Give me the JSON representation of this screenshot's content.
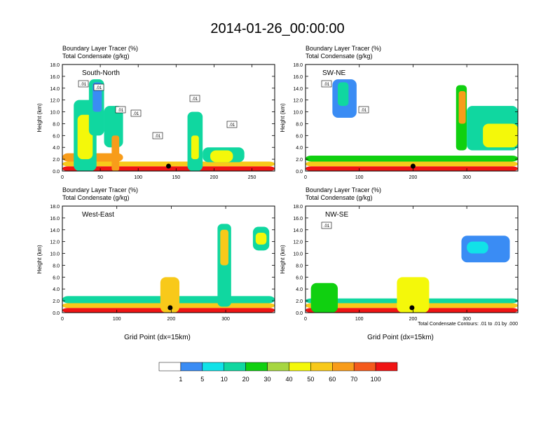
{
  "title": "2014-01-26_00:00:00",
  "colors": {
    "bins": [
      "#ffffff",
      "#3a8cf4",
      "#11e2e8",
      "#10d7a0",
      "#10d010",
      "#a6d640",
      "#f4f80a",
      "#f8c91a",
      "#f89c1a",
      "#f45a1c",
      "#f01414"
    ],
    "contour": "#000000",
    "marker": "#000000"
  },
  "colorbar": {
    "labels": [
      "1",
      "5",
      "10",
      "20",
      "30",
      "40",
      "50",
      "60",
      "70",
      "100"
    ]
  },
  "footnote": "Total Condensate Contours: .01 to .01 by .000",
  "chart_data": [
    {
      "type": "heatmap",
      "name_label": "South-North",
      "subtitle": [
        "Boundary Layer Tracer    (%)",
        "Total Condensate    (g/kg)"
      ],
      "ylabel": "Height (km)",
      "xlabel": "",
      "xlim": [
        0,
        280
      ],
      "ylim": [
        0,
        18
      ],
      "xticks": [
        "0",
        "50",
        "100",
        "150",
        "200",
        "250"
      ],
      "xtick_values": [
        0,
        50,
        100,
        150,
        200,
        250
      ],
      "yticks": [
        "0.0",
        "2.0",
        "4.0",
        "6.0",
        "8.0",
        "10.0",
        "12.0",
        "14.0",
        "16.0",
        "18.0"
      ],
      "marker_x": 140,
      "contour_labels": [
        ".01",
        ".01",
        ".01",
        ".01",
        ".01",
        ".01",
        ".01"
      ],
      "features": [
        {
          "x": [
            0,
            280
          ],
          "y": [
            0,
            0.8
          ],
          "level": 10
        },
        {
          "x": [
            0,
            280
          ],
          "y": [
            0.8,
            1.6
          ],
          "level": 7
        },
        {
          "x": [
            0,
            80
          ],
          "y": [
            1.6,
            3.0
          ],
          "level": 8
        },
        {
          "x": [
            15,
            45
          ],
          "y": [
            0,
            12.0
          ],
          "level": 3
        },
        {
          "x": [
            20,
            40
          ],
          "y": [
            2,
            9.5
          ],
          "level": 6
        },
        {
          "x": [
            35,
            55
          ],
          "y": [
            6,
            15.5
          ],
          "level": 3
        },
        {
          "x": [
            40,
            52
          ],
          "y": [
            10,
            15
          ],
          "level": 1
        },
        {
          "x": [
            55,
            80
          ],
          "y": [
            4,
            11
          ],
          "level": 3
        },
        {
          "x": [
            65,
            75
          ],
          "y": [
            0,
            6
          ],
          "level": 8
        },
        {
          "x": [
            165,
            185
          ],
          "y": [
            0,
            10
          ],
          "level": 3
        },
        {
          "x": [
            170,
            180
          ],
          "y": [
            2,
            6
          ],
          "level": 6
        },
        {
          "x": [
            185,
            240
          ],
          "y": [
            1.5,
            4.0
          ],
          "level": 3
        },
        {
          "x": [
            195,
            225
          ],
          "y": [
            1.5,
            3.5
          ],
          "level": 6
        }
      ]
    },
    {
      "type": "heatmap",
      "name_label": "SW-NE",
      "subtitle": [
        "Boundary Layer Tracer    (%)",
        "Total Condensate    (g/kg)"
      ],
      "ylabel": "Height (km)",
      "xlabel": "",
      "xlim": [
        0,
        395
      ],
      "ylim": [
        0,
        18
      ],
      "xticks": [
        "0",
        "100",
        "200",
        "300"
      ],
      "xtick_values": [
        0,
        100,
        200,
        300
      ],
      "yticks": [
        "0.0",
        "2.0",
        "4.0",
        "6.0",
        "8.0",
        "10.0",
        "12.0",
        "14.0",
        "16.0",
        "18.0"
      ],
      "marker_x": 200,
      "contour_labels": [
        ".01",
        ".01"
      ],
      "features": [
        {
          "x": [
            0,
            395
          ],
          "y": [
            0,
            0.8
          ],
          "level": 10
        },
        {
          "x": [
            0,
            395
          ],
          "y": [
            0.8,
            1.6
          ],
          "level": 7
        },
        {
          "x": [
            0,
            395
          ],
          "y": [
            1.6,
            2.6
          ],
          "level": 4
        },
        {
          "x": [
            50,
            95
          ],
          "y": [
            9,
            15.5
          ],
          "level": 1
        },
        {
          "x": [
            60,
            80
          ],
          "y": [
            11,
            15
          ],
          "level": 3
        },
        {
          "x": [
            280,
            300
          ],
          "y": [
            3.5,
            14.5
          ],
          "level": 4
        },
        {
          "x": [
            285,
            298
          ],
          "y": [
            8,
            13.5
          ],
          "level": 8
        },
        {
          "x": [
            300,
            395
          ],
          "y": [
            3.5,
            11
          ],
          "level": 3
        },
        {
          "x": [
            330,
            395
          ],
          "y": [
            4,
            8
          ],
          "level": 6
        }
      ]
    },
    {
      "type": "heatmap",
      "name_label": "West-East",
      "subtitle": [
        "Boundary Layer Tracer    (%)",
        "Total Condensate    (g/kg)"
      ],
      "ylabel": "Height (km)",
      "xlabel": "Grid Point (dx=15km)",
      "xlim": [
        0,
        390
      ],
      "ylim": [
        0,
        18
      ],
      "xticks": [
        "0",
        "100",
        "200",
        "300"
      ],
      "xtick_values": [
        0,
        100,
        200,
        300
      ],
      "yticks": [
        "0.0",
        "2.0",
        "4.0",
        "6.0",
        "8.0",
        "10.0",
        "12.0",
        "14.0",
        "16.0",
        "18.0"
      ],
      "marker_x": 198,
      "contour_labels": [],
      "features": [
        {
          "x": [
            0,
            390
          ],
          "y": [
            0,
            0.8
          ],
          "level": 10
        },
        {
          "x": [
            0,
            390
          ],
          "y": [
            0.8,
            1.6
          ],
          "level": 7
        },
        {
          "x": [
            0,
            390
          ],
          "y": [
            1.6,
            2.8
          ],
          "level": 3
        },
        {
          "x": [
            180,
            215
          ],
          "y": [
            0,
            6
          ],
          "level": 7
        },
        {
          "x": [
            285,
            310
          ],
          "y": [
            1,
            15
          ],
          "level": 3
        },
        {
          "x": [
            290,
            305
          ],
          "y": [
            8,
            14
          ],
          "level": 7
        },
        {
          "x": [
            350,
            380
          ],
          "y": [
            10.5,
            14.5
          ],
          "level": 3
        },
        {
          "x": [
            355,
            375
          ],
          "y": [
            11.5,
            13.5
          ],
          "level": 6
        }
      ]
    },
    {
      "type": "heatmap",
      "name_label": "NW-SE",
      "subtitle": [
        "Boundary Layer Tracer    (%)",
        "Total Condensate    (g/kg)"
      ],
      "ylabel": "Height (km)",
      "xlabel": "Grid Point (dx=15km)",
      "xlim": [
        0,
        395
      ],
      "ylim": [
        0,
        18
      ],
      "xticks": [
        "0",
        "100",
        "200",
        "300"
      ],
      "xtick_values": [
        0,
        100,
        200,
        300
      ],
      "yticks": [
        "0.0",
        "2.0",
        "4.0",
        "6.0",
        "8.0",
        "10.0",
        "12.0",
        "14.0",
        "16.0",
        "18.0"
      ],
      "marker_x": 198,
      "contour_labels": [
        ".01"
      ],
      "features": [
        {
          "x": [
            0,
            395
          ],
          "y": [
            0,
            0.8
          ],
          "level": 10
        },
        {
          "x": [
            0,
            395
          ],
          "y": [
            0.8,
            1.6
          ],
          "level": 7
        },
        {
          "x": [
            0,
            395
          ],
          "y": [
            1.6,
            2.4
          ],
          "level": 3
        },
        {
          "x": [
            10,
            60
          ],
          "y": [
            0,
            5
          ],
          "level": 4
        },
        {
          "x": [
            170,
            230
          ],
          "y": [
            0,
            6
          ],
          "level": 6
        },
        {
          "x": [
            290,
            380
          ],
          "y": [
            8.5,
            13
          ],
          "level": 1
        },
        {
          "x": [
            300,
            340
          ],
          "y": [
            10,
            12
          ],
          "level": 2
        }
      ]
    }
  ]
}
